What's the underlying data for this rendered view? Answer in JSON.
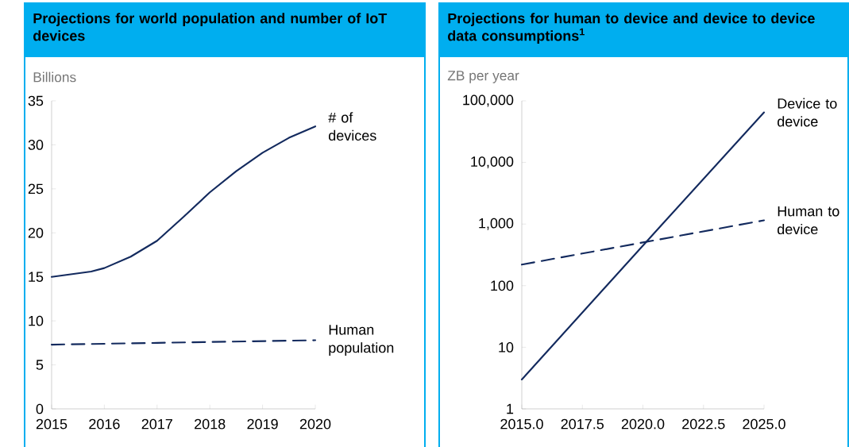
{
  "chart_data": [
    {
      "type": "line",
      "title": "Projections for world population and number of IoT devices",
      "ylabel": "Billions",
      "xlim": [
        2015,
        2020
      ],
      "xticks": [
        2015,
        2016,
        2017,
        2018,
        2019,
        2020
      ],
      "ylim": [
        0,
        35
      ],
      "yticks": [
        0,
        5,
        10,
        15,
        20,
        25,
        30,
        35
      ],
      "series": [
        {
          "name": "# of devices",
          "color": "#132a5e",
          "line_style": "solid",
          "x": [
            2015,
            2015.25,
            2015.75,
            2016,
            2016.5,
            2017,
            2017.5,
            2018,
            2018.5,
            2019,
            2019.5,
            2020
          ],
          "values": [
            15.0,
            15.2,
            15.6,
            16.0,
            17.3,
            19.1,
            21.8,
            24.6,
            27.0,
            29.1,
            30.8,
            32.1
          ]
        },
        {
          "name": "Human population",
          "color": "#132a5e",
          "line_style": "dashed",
          "x": [
            2015,
            2016,
            2017,
            2018,
            2019,
            2020
          ],
          "values": [
            7.3,
            7.4,
            7.5,
            7.6,
            7.7,
            7.8
          ]
        }
      ]
    },
    {
      "type": "line",
      "title": "Projections for human to device and device to device data consumptions$^{1}$",
      "ylabel": "ZB per year",
      "log": "y",
      "xlim": [
        2015,
        2025
      ],
      "xticks": [
        {
          "value": 2015,
          "label": "2015.0"
        },
        {
          "value": 2017.5,
          "label": "2017.5"
        },
        {
          "value": 2020,
          "label": "2020.0"
        },
        {
          "value": 2022.5,
          "label": "2022.5"
        },
        {
          "value": 2025,
          "label": "2025.0"
        }
      ],
      "ylim": [
        1,
        100000
      ],
      "yticks": [
        1,
        10,
        100,
        {
          "value": 1000,
          "label": "1,000"
        },
        {
          "value": 10000,
          "label": "10,000"
        },
        {
          "value": 100000,
          "label": "100,000"
        }
      ],
      "series": [
        {
          "name": "Device to device",
          "color": "#132a5e",
          "line_style": "solid",
          "x": [
            2015,
            2020.7,
            2025
          ],
          "values": [
            3,
            900,
            65000
          ]
        },
        {
          "name": "Human to device",
          "color": "#132a5e",
          "line_style": "dashed",
          "x": [
            2015,
            2025
          ],
          "values": [
            220,
            1150
          ]
        }
      ]
    }
  ]
}
